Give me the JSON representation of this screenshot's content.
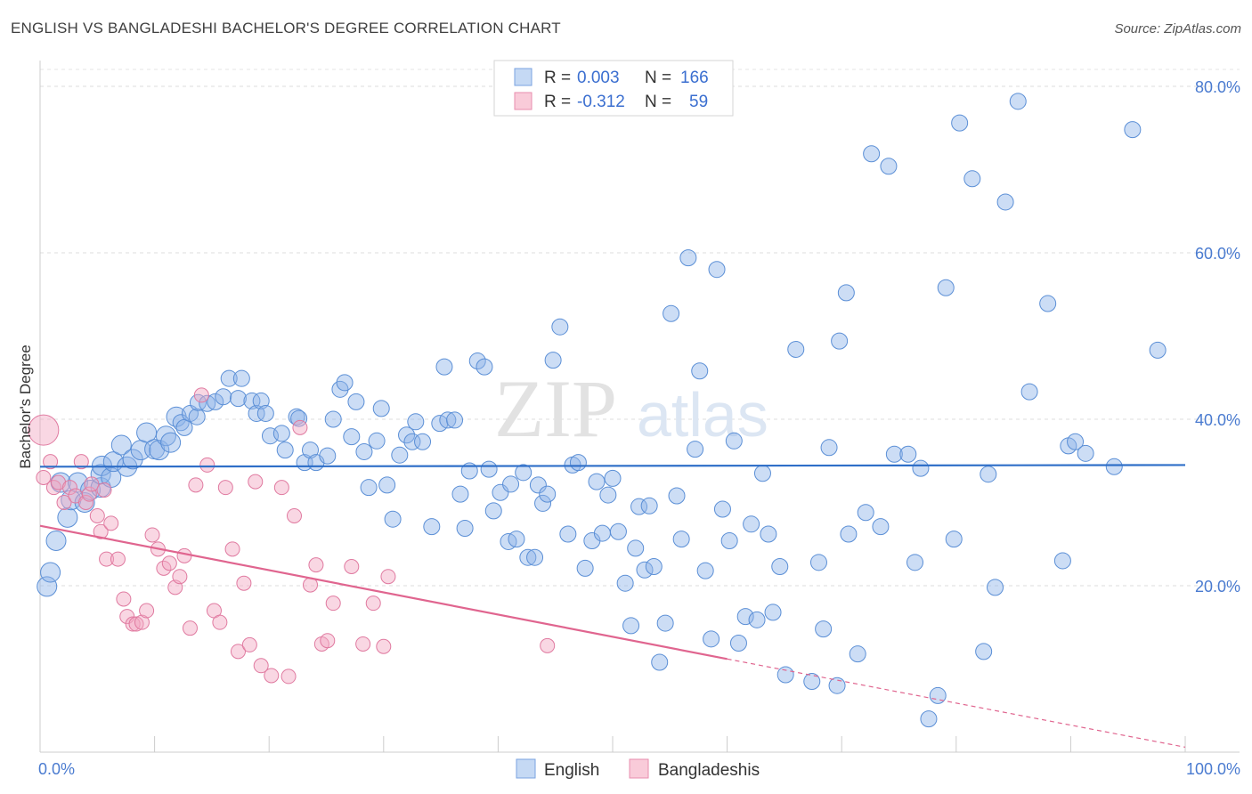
{
  "header": {
    "title": "ENGLISH VS BANGLADESHI BACHELOR'S DEGREE CORRELATION CHART",
    "source": "Source: ZipAtlas.com"
  },
  "watermark": {
    "part1": "ZIP",
    "part2": "atlas"
  },
  "legend": {
    "rows": [
      {
        "r_label": "R =",
        "r_value": "0.003",
        "n_label": "N =",
        "n_value": "166",
        "color": "#8fb4e8"
      },
      {
        "r_label": "R =",
        "r_value": "-0.312",
        "n_label": "N =",
        "n_value": "59",
        "color": "#f2a7c0"
      }
    ]
  },
  "bottom_legend": {
    "items": [
      {
        "label": "English",
        "color": "#8fb4e8"
      },
      {
        "label": "Bangladeshis",
        "color": "#f2a7c0"
      }
    ]
  },
  "chart_data": {
    "type": "scatter",
    "title": "ENGLISH VS BANGLADESHI BACHELOR'S DEGREE CORRELATION CHART",
    "xlabel": "",
    "ylabel": "Bachelor's Degree",
    "xlim": [
      0,
      100
    ],
    "ylim": [
      0,
      80
    ],
    "x_tick_labels": [
      "0.0%",
      "100.0%"
    ],
    "y_ticks": [
      20,
      40,
      60,
      80
    ],
    "y_tick_labels": [
      "20.0%",
      "40.0%",
      "60.0%",
      "80.0%"
    ],
    "grid": true,
    "legend_position": "top-center",
    "series": [
      {
        "name": "English",
        "color": "#8fb4e8",
        "edge": "#5b8fd6",
        "trend": {
          "x": [
            0,
            100
          ],
          "y": [
            34.3,
            34.5
          ],
          "color": "#2f6fc8"
        },
        "points": [
          [
            0.6,
            19.9
          ],
          [
            0.9,
            21.6
          ],
          [
            1.4,
            25.4
          ],
          [
            1.8,
            32.4
          ],
          [
            2.4,
            28.2
          ],
          [
            2.7,
            30.3
          ],
          [
            3.3,
            32.4
          ],
          [
            3.9,
            30.0
          ],
          [
            4.4,
            31.5
          ],
          [
            5.3,
            31.8
          ],
          [
            5.3,
            33.4
          ],
          [
            5.4,
            34.4
          ],
          [
            6.2,
            33.0
          ],
          [
            6.4,
            34.9
          ],
          [
            7.1,
            36.9
          ],
          [
            7.6,
            34.3
          ],
          [
            8.1,
            35.2
          ],
          [
            8.8,
            36.3
          ],
          [
            9.3,
            38.4
          ],
          [
            10.0,
            36.4
          ],
          [
            10.4,
            36.3
          ],
          [
            11.0,
            38.0
          ],
          [
            11.4,
            37.2
          ],
          [
            11.9,
            40.3
          ],
          [
            12.3,
            39.6
          ],
          [
            12.6,
            39.0
          ],
          [
            13.1,
            40.7
          ],
          [
            13.7,
            40.3
          ],
          [
            13.8,
            42.0
          ],
          [
            14.6,
            41.9
          ],
          [
            15.3,
            42.1
          ],
          [
            16.0,
            42.7
          ],
          [
            16.5,
            44.9
          ],
          [
            17.3,
            42.5
          ],
          [
            17.6,
            44.9
          ],
          [
            18.5,
            42.2
          ],
          [
            18.9,
            40.7
          ],
          [
            19.3,
            42.2
          ],
          [
            19.7,
            40.7
          ],
          [
            20.1,
            38.0
          ],
          [
            21.1,
            38.3
          ],
          [
            21.4,
            36.3
          ],
          [
            22.4,
            40.3
          ],
          [
            22.6,
            40.1
          ],
          [
            23.1,
            34.8
          ],
          [
            23.6,
            36.3
          ],
          [
            24.1,
            34.8
          ],
          [
            25.1,
            35.6
          ],
          [
            25.6,
            40.0
          ],
          [
            26.2,
            43.6
          ],
          [
            26.6,
            44.4
          ],
          [
            27.2,
            37.9
          ],
          [
            27.6,
            42.1
          ],
          [
            28.3,
            36.1
          ],
          [
            28.7,
            31.8
          ],
          [
            29.4,
            37.4
          ],
          [
            29.8,
            41.3
          ],
          [
            30.3,
            32.1
          ],
          [
            30.8,
            28.0
          ],
          [
            31.4,
            35.7
          ],
          [
            32.0,
            38.1
          ],
          [
            32.5,
            37.3
          ],
          [
            32.8,
            39.7
          ],
          [
            33.4,
            37.3
          ],
          [
            34.2,
            27.1
          ],
          [
            34.9,
            39.5
          ],
          [
            35.3,
            46.3
          ],
          [
            35.6,
            39.9
          ],
          [
            36.2,
            39.9
          ],
          [
            36.7,
            31.0
          ],
          [
            37.1,
            26.9
          ],
          [
            37.5,
            33.8
          ],
          [
            38.2,
            47.0
          ],
          [
            38.8,
            46.3
          ],
          [
            39.2,
            34.0
          ],
          [
            39.6,
            29.0
          ],
          [
            40.2,
            31.2
          ],
          [
            40.9,
            25.3
          ],
          [
            41.1,
            32.2
          ],
          [
            41.6,
            25.6
          ],
          [
            42.2,
            33.6
          ],
          [
            42.6,
            23.4
          ],
          [
            43.2,
            23.4
          ],
          [
            43.5,
            32.1
          ],
          [
            43.9,
            29.9
          ],
          [
            44.3,
            31.0
          ],
          [
            44.8,
            47.1
          ],
          [
            45.4,
            51.1
          ],
          [
            46.1,
            26.2
          ],
          [
            46.5,
            34.5
          ],
          [
            47.0,
            34.8
          ],
          [
            47.6,
            22.1
          ],
          [
            48.2,
            25.4
          ],
          [
            48.6,
            32.5
          ],
          [
            49.1,
            26.3
          ],
          [
            49.6,
            30.9
          ],
          [
            50.0,
            32.9
          ],
          [
            50.5,
            26.5
          ],
          [
            51.1,
            20.3
          ],
          [
            51.6,
            15.2
          ],
          [
            52.0,
            24.5
          ],
          [
            52.3,
            29.5
          ],
          [
            52.8,
            21.9
          ],
          [
            53.2,
            29.6
          ],
          [
            53.6,
            22.3
          ],
          [
            54.1,
            10.8
          ],
          [
            54.6,
            15.5
          ],
          [
            55.1,
            52.7
          ],
          [
            55.6,
            30.8
          ],
          [
            56.0,
            25.6
          ],
          [
            56.6,
            59.4
          ],
          [
            57.2,
            36.4
          ],
          [
            57.6,
            45.8
          ],
          [
            58.1,
            21.8
          ],
          [
            58.6,
            13.6
          ],
          [
            59.1,
            58.0
          ],
          [
            59.6,
            29.2
          ],
          [
            60.2,
            25.4
          ],
          [
            60.6,
            37.4
          ],
          [
            61.0,
            13.1
          ],
          [
            61.6,
            16.3
          ],
          [
            62.1,
            27.4
          ],
          [
            62.6,
            15.9
          ],
          [
            63.1,
            33.5
          ],
          [
            63.6,
            26.2
          ],
          [
            64.0,
            16.8
          ],
          [
            64.6,
            22.3
          ],
          [
            65.1,
            9.3
          ],
          [
            66.0,
            48.4
          ],
          [
            67.4,
            8.5
          ],
          [
            68.0,
            22.8
          ],
          [
            68.4,
            14.8
          ],
          [
            68.9,
            36.6
          ],
          [
            69.6,
            8.0
          ],
          [
            69.8,
            49.4
          ],
          [
            70.4,
            55.2
          ],
          [
            70.6,
            26.2
          ],
          [
            71.4,
            11.8
          ],
          [
            72.1,
            28.8
          ],
          [
            72.6,
            71.9
          ],
          [
            73.4,
            27.1
          ],
          [
            74.1,
            70.4
          ],
          [
            74.6,
            35.8
          ],
          [
            75.8,
            35.8
          ],
          [
            76.4,
            22.8
          ],
          [
            76.9,
            34.1
          ],
          [
            77.6,
            4.0
          ],
          [
            78.4,
            6.8
          ],
          [
            79.1,
            55.8
          ],
          [
            79.8,
            25.6
          ],
          [
            80.3,
            75.6
          ],
          [
            81.4,
            68.9
          ],
          [
            82.4,
            12.1
          ],
          [
            82.8,
            33.4
          ],
          [
            83.4,
            19.8
          ],
          [
            84.3,
            66.1
          ],
          [
            85.4,
            78.2
          ],
          [
            86.4,
            43.3
          ],
          [
            88.0,
            53.9
          ],
          [
            89.3,
            23.0
          ],
          [
            89.8,
            36.8
          ],
          [
            90.4,
            37.3
          ],
          [
            91.3,
            35.9
          ],
          [
            93.8,
            34.3
          ],
          [
            95.4,
            74.8
          ],
          [
            97.6,
            48.3
          ]
        ]
      },
      {
        "name": "Bangladeshis",
        "color": "#f2a7c0",
        "edge": "#e07aa0",
        "trend": {
          "x": [
            0,
            60
          ],
          "y": [
            27.2,
            11.2
          ],
          "dashed_to": [
            100,
            0.6
          ],
          "color": "#e0658f"
        },
        "points": [
          [
            0.3,
            33.0
          ],
          [
            0.9,
            34.9
          ],
          [
            1.2,
            31.8
          ],
          [
            1.6,
            32.4
          ],
          [
            2.1,
            30.0
          ],
          [
            2.6,
            31.8
          ],
          [
            3.1,
            30.8
          ],
          [
            3.6,
            34.9
          ],
          [
            4.0,
            30.0
          ],
          [
            4.3,
            31.0
          ],
          [
            4.5,
            32.2
          ],
          [
            5.0,
            28.4
          ],
          [
            5.3,
            26.5
          ],
          [
            5.6,
            31.5
          ],
          [
            5.8,
            23.2
          ],
          [
            6.2,
            27.5
          ],
          [
            6.8,
            23.2
          ],
          [
            7.3,
            18.4
          ],
          [
            7.6,
            16.3
          ],
          [
            8.1,
            15.4
          ],
          [
            8.4,
            15.4
          ],
          [
            8.9,
            15.6
          ],
          [
            9.3,
            17.0
          ],
          [
            9.8,
            26.1
          ],
          [
            10.3,
            24.4
          ],
          [
            10.8,
            22.1
          ],
          [
            11.3,
            22.7
          ],
          [
            11.8,
            19.8
          ],
          [
            12.2,
            21.1
          ],
          [
            12.6,
            23.6
          ],
          [
            13.1,
            14.9
          ],
          [
            13.6,
            32.1
          ],
          [
            14.1,
            42.9
          ],
          [
            14.6,
            34.5
          ],
          [
            15.2,
            17.0
          ],
          [
            15.7,
            15.6
          ],
          [
            16.2,
            31.8
          ],
          [
            16.8,
            24.4
          ],
          [
            17.3,
            12.1
          ],
          [
            17.8,
            20.3
          ],
          [
            18.3,
            12.9
          ],
          [
            18.8,
            32.5
          ],
          [
            19.3,
            10.4
          ],
          [
            20.2,
            9.2
          ],
          [
            21.1,
            31.8
          ],
          [
            21.7,
            9.1
          ],
          [
            22.2,
            28.4
          ],
          [
            22.7,
            39.0
          ],
          [
            23.6,
            20.1
          ],
          [
            24.1,
            22.5
          ],
          [
            24.6,
            13.0
          ],
          [
            25.1,
            13.4
          ],
          [
            25.6,
            17.9
          ],
          [
            27.2,
            22.3
          ],
          [
            28.2,
            13.0
          ],
          [
            29.1,
            17.9
          ],
          [
            30.0,
            12.7
          ],
          [
            30.4,
            21.1
          ],
          [
            44.3,
            12.8
          ]
        ],
        "sizes_note": "one large point at x=0.3,y=38.7",
        "large_point": [
          0.3,
          38.7
        ]
      }
    ]
  }
}
